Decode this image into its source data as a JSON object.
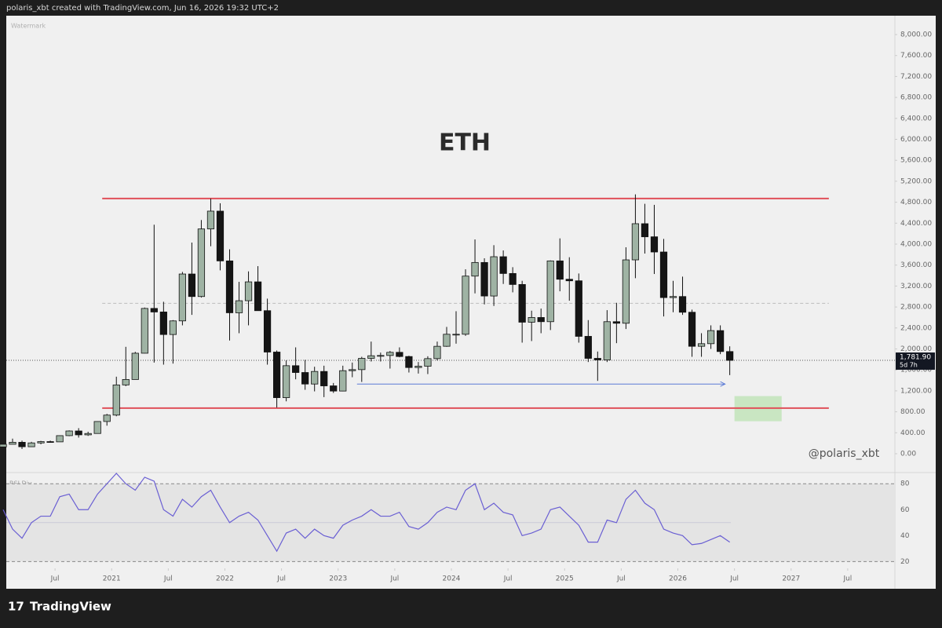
{
  "header": "polaris_xbt created with TradingView.com, Jun 16, 2026 19:32 UTC+2",
  "footer": "TradingView",
  "chart_data": [
    {
      "type": "candlestick",
      "title": "ETH",
      "watermark": "Watermark",
      "author": "@polaris_xbt",
      "x": [
        "2020-01",
        "2020-02",
        "2020-03",
        "2020-04",
        "2020-05",
        "2020-06",
        "2020-07",
        "2020-08",
        "2020-09",
        "2020-10",
        "2020-11",
        "2020-12",
        "2021-01",
        "2021-02",
        "2021-03",
        "2021-04",
        "2021-05",
        "2021-06",
        "2021-07",
        "2021-08",
        "2021-09",
        "2021-10",
        "2021-11",
        "2021-12",
        "2022-01",
        "2022-02",
        "2022-03",
        "2022-04",
        "2022-05",
        "2022-06",
        "2022-07",
        "2022-08",
        "2022-09",
        "2022-10",
        "2022-11",
        "2022-12",
        "2023-01",
        "2023-02",
        "2023-03",
        "2023-04",
        "2023-05",
        "2023-06",
        "2023-07",
        "2023-08",
        "2023-09",
        "2023-10",
        "2023-11",
        "2023-12",
        "2024-01",
        "2024-02",
        "2024-03",
        "2024-04",
        "2024-05",
        "2024-06",
        "2024-07",
        "2024-08",
        "2024-09",
        "2024-10",
        "2024-11",
        "2024-12",
        "2025-01",
        "2025-02",
        "2025-03",
        "2025-04",
        "2025-05",
        "2025-06",
        "2025-07",
        "2025-08",
        "2025-09",
        "2025-10",
        "2025-11",
        "2025-12",
        "2026-01",
        "2026-02",
        "2026-03",
        "2026-04",
        "2026-05",
        "2026-06"
      ],
      "open": [
        130,
        180,
        218,
        133,
        206,
        231,
        226,
        345,
        434,
        360,
        386,
        615,
        737,
        1313,
        1417,
        1918,
        2773,
        2705,
        2275,
        2535,
        3430,
        3000,
        4290,
        4630,
        3680,
        2690,
        2920,
        3280,
        2730,
        1940,
        1070,
        1680,
        1550,
        1330,
        1570,
        1295,
        1196,
        1585,
        1605,
        1820,
        1870,
        1875,
        1935,
        1855,
        1645,
        1670,
        1815,
        2050,
        2280,
        2280,
        3390,
        3650,
        3010,
        3760,
        3440,
        3230,
        2510,
        2600,
        2520,
        3680,
        3330,
        3300,
        2240,
        1820,
        1790,
        2520,
        2490,
        3700,
        4390,
        4140,
        3850,
        2980,
        3000,
        2700,
        2050,
        2100,
        2350,
        1950
      ],
      "high": [
        180,
        288,
        250,
        227,
        245,
        250,
        349,
        445,
        488,
        420,
        620,
        760,
        1470,
        2040,
        1945,
        2790,
        4370,
        2900,
        2550,
        3470,
        4030,
        4460,
        4870,
        4780,
        3900,
        3280,
        3480,
        3580,
        2960,
        1970,
        1780,
        2030,
        1790,
        1660,
        1680,
        1350,
        1680,
        1740,
        1850,
        2140,
        1930,
        1960,
        2030,
        1870,
        1750,
        1860,
        2140,
        2420,
        2720,
        3520,
        4090,
        3730,
        3980,
        3880,
        3560,
        3300,
        2730,
        2770,
        3690,
        4110,
        3750,
        3440,
        2550,
        1950,
        2740,
        2880,
        3940,
        4950,
        4770,
        4750,
        4100,
        3300,
        3380,
        2750,
        2300,
        2450,
        2450,
        2050
      ],
      "low": [
        127,
        180,
        90,
        130,
        180,
        215,
        225,
        335,
        308,
        340,
        383,
        535,
        715,
        1290,
        1430,
        1915,
        1740,
        1700,
        1720,
        2450,
        2650,
        2980,
        3960,
        3500,
        2160,
        2300,
        2450,
        2780,
        1700,
        880,
        1000,
        1420,
        1220,
        1190,
        1080,
        1160,
        1190,
        1460,
        1370,
        1760,
        1760,
        1625,
        1840,
        1550,
        1530,
        1520,
        1780,
        2040,
        2100,
        2250,
        3060,
        2850,
        2820,
        3240,
        3080,
        2120,
        2150,
        2300,
        2360,
        3100,
        2920,
        2120,
        1750,
        1390,
        1750,
        2110,
        2380,
        3350,
        3820,
        3430,
        2620,
        2700,
        2650,
        1850,
        1850,
        2000,
        1900,
        1500
      ],
      "close": [
        180,
        218,
        133,
        206,
        231,
        226,
        345,
        434,
        360,
        386,
        615,
        737,
        1313,
        1417,
        1918,
        2773,
        2705,
        2275,
        2535,
        3430,
        3000,
        4290,
        4630,
        3680,
        2690,
        2920,
        3280,
        2730,
        1940,
        1070,
        1680,
        1550,
        1330,
        1570,
        1295,
        1196,
        1585,
        1605,
        1820,
        1870,
        1875,
        1935,
        1855,
        1645,
        1670,
        1815,
        2050,
        2280,
        2280,
        3390,
        3650,
        3010,
        3760,
        3440,
        3230,
        2510,
        2600,
        2520,
        3680,
        3330,
        3300,
        2240,
        1820,
        1790,
        2520,
        2490,
        3700,
        4390,
        4140,
        3850,
        2980,
        3000,
        2700,
        2050,
        2100,
        2350,
        1950,
        1781.9
      ],
      "up_color": "#9fb3a4",
      "down_color": "#151515",
      "xlim": [
        "2020-02",
        "2027-12"
      ],
      "xticks": [
        {
          "value": "2020-07",
          "label": "Jul"
        },
        {
          "value": "2021-01",
          "label": "2021"
        },
        {
          "value": "2021-07",
          "label": "Jul"
        },
        {
          "value": "2022-01",
          "label": "2022"
        },
        {
          "value": "2022-07",
          "label": "Jul"
        },
        {
          "value": "2023-01",
          "label": "2023"
        },
        {
          "value": "2023-07",
          "label": "Jul"
        },
        {
          "value": "2024-01",
          "label": "2024"
        },
        {
          "value": "2024-07",
          "label": "Jul"
        },
        {
          "value": "2025-01",
          "label": "2025"
        },
        {
          "value": "2025-07",
          "label": "Jul"
        },
        {
          "value": "2026-01",
          "label": "2026"
        },
        {
          "value": "2026-07",
          "label": "Jul"
        },
        {
          "value": "2027-01",
          "label": "2027"
        },
        {
          "value": "2027-07",
          "label": "Jul"
        }
      ],
      "ylim": [
        -330,
        8360
      ],
      "yticks": [
        {
          "value": 0,
          "label": "0.00"
        },
        {
          "value": 400,
          "label": "400.00"
        },
        {
          "value": 800,
          "label": "800.00"
        },
        {
          "value": 1200,
          "label": "1,200.00"
        },
        {
          "value": 1600,
          "label": "1,600.00"
        },
        {
          "value": 2000,
          "label": "2,000.00"
        },
        {
          "value": 2400,
          "label": "2,400.00"
        },
        {
          "value": 2800,
          "label": "2,800.00"
        },
        {
          "value": 3200,
          "label": "3,200.00"
        },
        {
          "value": 3600,
          "label": "3,600.00"
        },
        {
          "value": 4000,
          "label": "4,000.00"
        },
        {
          "value": 4400,
          "label": "4,400.00"
        },
        {
          "value": 4800,
          "label": "4,800.00"
        },
        {
          "value": 5200,
          "label": "5,200.00"
        },
        {
          "value": 5600,
          "label": "5,600.00"
        },
        {
          "value": 6000,
          "label": "6,000.00"
        },
        {
          "value": 6400,
          "label": "6,400.00"
        },
        {
          "value": 6800,
          "label": "6,800.00"
        },
        {
          "value": 7200,
          "label": "7,200.00"
        },
        {
          "value": 7600,
          "label": "7,600.00"
        },
        {
          "value": 8000,
          "label": "8,000.00"
        }
      ],
      "last_price": {
        "value": 1781.9,
        "label": "1,781.90"
      },
      "countdown": "5d 7h",
      "levels": [
        {
          "value": 4870,
          "from": "2020-12",
          "to": "2027-05",
          "color": "#e0505a",
          "dash": "none"
        },
        {
          "value": 870,
          "from": "2020-12",
          "to": "2027-05",
          "color": "#e0505a",
          "dash": "none"
        },
        {
          "value": 2870,
          "from": "2020-12",
          "to": "2027-05",
          "color": "#bbbbbb",
          "dash": "4 3"
        }
      ],
      "arrow": {
        "value": 1330,
        "from": "2023-03",
        "to": "2026-06",
        "color": "#5b7bd5"
      },
      "zone": {
        "x": [
          "2026-07",
          "2026-12"
        ],
        "y": [
          620,
          1100
        ],
        "color": "#bfe3b6"
      }
    },
    {
      "type": "line",
      "title": "RSI Div",
      "x": [
        "2020-01",
        "2020-02",
        "2020-03",
        "2020-04",
        "2020-05",
        "2020-06",
        "2020-07",
        "2020-08",
        "2020-09",
        "2020-10",
        "2020-11",
        "2020-12",
        "2021-01",
        "2021-02",
        "2021-03",
        "2021-04",
        "2021-05",
        "2021-06",
        "2021-07",
        "2021-08",
        "2021-09",
        "2021-10",
        "2021-11",
        "2021-12",
        "2022-01",
        "2022-02",
        "2022-03",
        "2022-04",
        "2022-05",
        "2022-06",
        "2022-07",
        "2022-08",
        "2022-09",
        "2022-10",
        "2022-11",
        "2022-12",
        "2023-01",
        "2023-02",
        "2023-03",
        "2023-04",
        "2023-05",
        "2023-06",
        "2023-07",
        "2023-08",
        "2023-09",
        "2023-10",
        "2023-11",
        "2023-12",
        "2024-01",
        "2024-02",
        "2024-03",
        "2024-04",
        "2024-05",
        "2024-06",
        "2024-07",
        "2024-08",
        "2024-09",
        "2024-10",
        "2024-11",
        "2024-12",
        "2025-01",
        "2025-02",
        "2025-03",
        "2025-04",
        "2025-05",
        "2025-06",
        "2025-07",
        "2025-08",
        "2025-09",
        "2025-10",
        "2025-11",
        "2025-12",
        "2026-01",
        "2026-02",
        "2026-03",
        "2026-04",
        "2026-05",
        "2026-06"
      ],
      "series": [
        {
          "color": "#6a5fd3",
          "values": [
            60,
            45,
            38,
            50,
            55,
            55,
            70,
            72,
            60,
            60,
            72,
            80,
            88,
            80,
            75,
            85,
            82,
            60,
            55,
            68,
            62,
            70,
            75,
            62,
            50,
            55,
            58,
            52,
            40,
            28,
            42,
            45,
            38,
            45,
            40,
            38,
            48,
            52,
            55,
            60,
            55,
            55,
            58,
            47,
            45,
            50,
            58,
            62,
            60,
            75,
            80,
            60,
            65,
            58,
            56,
            40,
            42,
            45,
            60,
            62,
            55,
            48,
            35,
            35,
            52,
            50,
            68,
            75,
            65,
            60,
            45,
            42,
            40,
            33,
            34,
            37,
            40,
            35
          ]
        }
      ],
      "ylim": [
        16,
        88
      ],
      "yticks": [
        20,
        40,
        60,
        80
      ],
      "bands": [
        20,
        80
      ],
      "mid": 50
    }
  ]
}
